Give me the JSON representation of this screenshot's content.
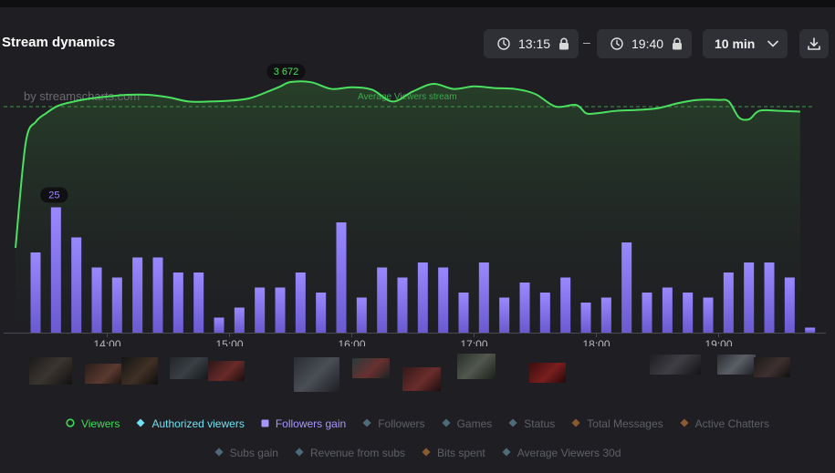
{
  "header": {
    "title": "Stream dynamics",
    "start_time": "13:15",
    "end_time": "19:40",
    "separator": "–",
    "interval": "10 min"
  },
  "watermark": "by streamscharts.com",
  "avg_line_label": "Average Viewers stream",
  "chart_data": {
    "type": "line",
    "x_ticks": [
      "14:00",
      "15:00",
      "16:00",
      "17:00",
      "18:00",
      "19:00"
    ],
    "series": [
      {
        "name": "Viewers",
        "color": "#3ddc58",
        "points": [
          [
            "13:15",
            1700
          ],
          [
            "13:20",
            2950
          ],
          [
            "13:25",
            3200
          ],
          [
            "13:30",
            3300
          ],
          [
            "13:35",
            3380
          ],
          [
            "13:40",
            3420
          ],
          [
            "13:50",
            3470
          ],
          [
            "14:00",
            3500
          ],
          [
            "14:10",
            3520
          ],
          [
            "14:20",
            3520
          ],
          [
            "14:30",
            3490
          ],
          [
            "14:40",
            3440
          ],
          [
            "14:50",
            3440
          ],
          [
            "15:00",
            3450
          ],
          [
            "15:10",
            3480
          ],
          [
            "15:20",
            3570
          ],
          [
            "15:25",
            3620
          ],
          [
            "15:30",
            3672
          ],
          [
            "15:40",
            3670
          ],
          [
            "15:50",
            3590
          ],
          [
            "16:00",
            3610
          ],
          [
            "16:10",
            3580
          ],
          [
            "16:20",
            3440
          ],
          [
            "16:30",
            3560
          ],
          [
            "16:40",
            3650
          ],
          [
            "16:50",
            3590
          ],
          [
            "17:00",
            3620
          ],
          [
            "17:10",
            3600
          ],
          [
            "17:20",
            3590
          ],
          [
            "17:30",
            3530
          ],
          [
            "17:40",
            3380
          ],
          [
            "17:50",
            3400
          ],
          [
            "17:55",
            3300
          ],
          [
            "18:00",
            3300
          ],
          [
            "18:10",
            3330
          ],
          [
            "18:20",
            3340
          ],
          [
            "18:30",
            3360
          ],
          [
            "18:40",
            3420
          ],
          [
            "18:50",
            3460
          ],
          [
            "19:00",
            3460
          ],
          [
            "19:05",
            3440
          ],
          [
            "19:10",
            3250
          ],
          [
            "19:15",
            3230
          ],
          [
            "19:20",
            3330
          ],
          [
            "19:30",
            3330
          ],
          [
            "19:40",
            3320
          ]
        ],
        "peak_label": "3 672",
        "peak_time": "15:30"
      },
      {
        "name": "Followers gain",
        "color": "#8c7cf0",
        "x": [
          "13:15",
          "13:25",
          "13:35",
          "13:45",
          "13:55",
          "14:05",
          "14:15",
          "14:25",
          "14:35",
          "14:45",
          "14:55",
          "15:05",
          "15:15",
          "15:25",
          "15:35",
          "15:45",
          "15:55",
          "16:05",
          "16:15",
          "16:25",
          "16:35",
          "16:45",
          "16:55",
          "17:05",
          "17:15",
          "17:25",
          "17:35",
          "17:45",
          "17:55",
          "18:05",
          "18:15",
          "18:25",
          "18:35",
          "18:45",
          "18:55",
          "19:05",
          "19:15",
          "19:25",
          "19:35"
        ],
        "values": [
          16,
          25,
          19,
          13,
          11,
          15,
          15,
          12,
          12,
          3,
          5,
          9,
          9,
          12,
          8,
          22,
          7,
          13,
          11,
          14,
          13,
          8,
          14,
          7,
          10,
          8,
          11,
          6,
          7,
          18,
          8,
          9,
          8,
          7,
          12,
          14,
          14,
          11,
          1
        ],
        "peak_label": "25"
      }
    ]
  },
  "legend_row1": [
    {
      "label": "Viewers",
      "icon": "circle-icon",
      "color": "#3ddc58",
      "active": true
    },
    {
      "label": "Authorized viewers",
      "icon": "diamond-icon",
      "color": "#6fe0f0",
      "active": true
    },
    {
      "label": "Followers gain",
      "icon": "square-icon",
      "color": "#a796ff",
      "active": true
    },
    {
      "label": "Followers",
      "icon": "diamond-icon",
      "color": "#4f6a78",
      "active": false
    },
    {
      "label": "Games",
      "icon": "diamond-icon",
      "color": "#4f6a78",
      "active": false
    },
    {
      "label": "Status",
      "icon": "diamond-icon",
      "color": "#4f6a78",
      "active": false
    },
    {
      "label": "Total Messages",
      "icon": "diamond-icon",
      "color": "#8a5a30",
      "active": false
    },
    {
      "label": "Active Chatters",
      "icon": "diamond-icon",
      "color": "#8a5a30",
      "active": false
    }
  ],
  "legend_row2": [
    {
      "label": "Subs gain",
      "icon": "diamond-icon",
      "color": "#4f6a78",
      "active": false
    },
    {
      "label": "Revenue from subs",
      "icon": "diamond-icon",
      "color": "#4f6a78",
      "active": false
    },
    {
      "label": "Bits spent",
      "icon": "diamond-icon",
      "color": "#8a5a30",
      "active": false
    },
    {
      "label": "Average Viewers 30d",
      "icon": "diamond-icon",
      "color": "#4f6a78",
      "active": false
    }
  ]
}
